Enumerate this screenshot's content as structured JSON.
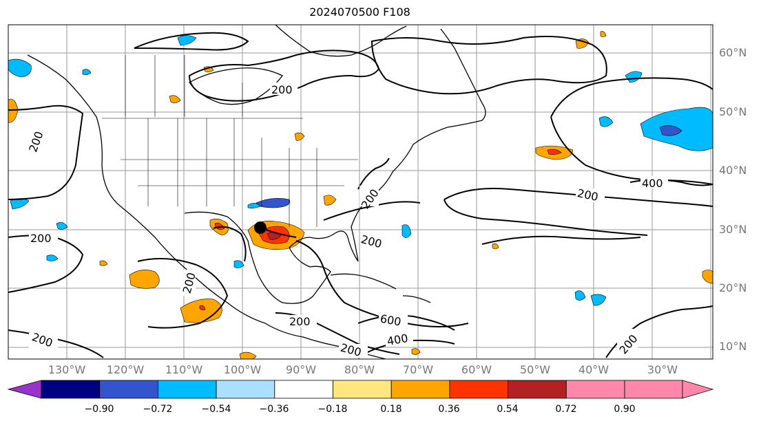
{
  "title": "2024070500 F108",
  "map": {
    "lat_labels": [
      "60°N",
      "50°N",
      "40°N",
      "30°N",
      "20°N",
      "10°N"
    ],
    "lon_labels": [
      "130°W",
      "120°W",
      "110°W",
      "100°W",
      "90°W",
      "80°W",
      "70°W",
      "60°W",
      "50°W",
      "40°W",
      "30°W"
    ],
    "contour_labels": [
      "200",
      "200",
      "200",
      "200",
      "200",
      "200",
      "200",
      "200",
      "200",
      "200",
      "400",
      "400",
      "600",
      "200"
    ],
    "marker": "black-dot-storm-center"
  },
  "colorbar": {
    "tick_labels": [
      "−0.90",
      "−0.72",
      "−0.54",
      "−0.36",
      "−0.18",
      "0.18",
      "0.36",
      "0.54",
      "0.72",
      "0.90"
    ],
    "colors": [
      "#9933cc",
      "#000080",
      "#3355cc",
      "#00bbff",
      "#aadfff",
      "#ffffff",
      "#ffe680",
      "#ffa500",
      "#ff3300",
      "#b22222",
      "#ff88aa"
    ]
  }
}
